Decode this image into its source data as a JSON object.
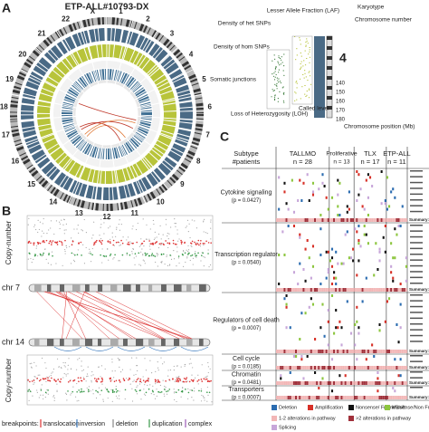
{
  "panel_a": {
    "label": "A",
    "title": "ETP-ALL#10793-DX",
    "chromosomes": [
      "1",
      "2",
      "3",
      "4",
      "5",
      "6",
      "7",
      "8",
      "9",
      "10",
      "11",
      "12",
      "13",
      "14",
      "15",
      "16",
      "17",
      "18",
      "19",
      "20",
      "21",
      "22",
      "X"
    ],
    "annotations": {
      "karyotype": "Karyotype",
      "laf": "Lesser Allele Fraction (LAF)",
      "chromosome_number": "Chromosome number",
      "het_snps": "Density of het SNPs",
      "hom_snps": "Density of hom SNPs",
      "junctions": "Somatic junctions",
      "loh": "Loss of Heterozygosity (LOH)",
      "called_level": "Called level",
      "position": "Chromosome position (Mb)"
    },
    "zoom_chromosome": "4",
    "zoom_positions": [
      "140",
      "150",
      "160",
      "170",
      "180"
    ]
  },
  "panel_b": {
    "label": "B",
    "y_label": "Copy-number",
    "chr_top": "chr 7",
    "chr_bottom": "chr 14",
    "legend_title": "breakpoints:",
    "legend": [
      "translocation",
      "inversion",
      "deletion",
      "duplication",
      "complex"
    ]
  },
  "panel_c": {
    "label": "C",
    "subtype": "Subtype",
    "patients": "#patients",
    "groups": [
      {
        "name": "TALLMO",
        "n": "n = 28"
      },
      {
        "name": "Proliferative",
        "n": "n = 13"
      },
      {
        "name": "TLX",
        "n": "n = 17"
      },
      {
        "name": "ETP-ALL",
        "n": "n = 11"
      }
    ],
    "rows": [
      {
        "name": "Cytokine signaling",
        "p": "(p = 0.0427)"
      },
      {
        "name": "Transcription regulator",
        "p": "(p = 0.0540)"
      },
      {
        "name": "Regulators of cell death",
        "p": "(p = 0.0007)"
      },
      {
        "name": "Cell cycle",
        "p": "(p = 0.0185)"
      },
      {
        "name": "Chromatin",
        "p": "(p = 0.0481)"
      },
      {
        "name": "Transporters",
        "p": "(p = 0.0007)"
      }
    ],
    "summary": "Summary:",
    "legend": [
      "Deletion",
      "Amplification",
      "Nonsense/ FrameShift",
      "Missense/Non FrameShift",
      "1-2 alterations in pathway",
      ">2 alterations in pathway",
      "Splicing"
    ]
  }
}
